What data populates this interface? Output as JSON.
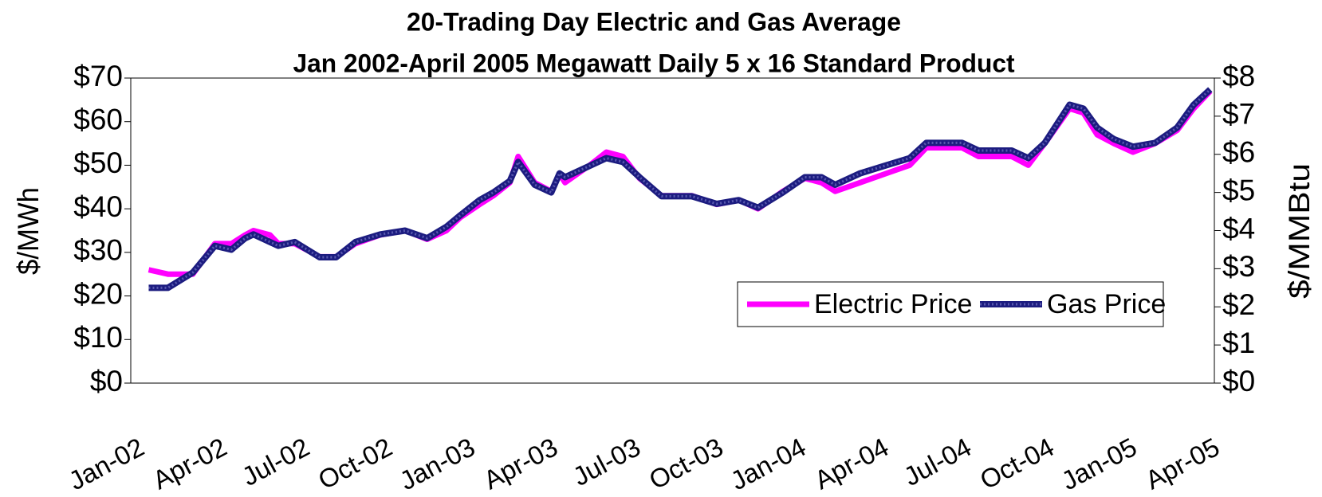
{
  "chart_data": {
    "type": "line",
    "title": "20-Trading Day Electric and Gas Average",
    "subtitle": "Jan 2002-April 2005 Megawatt Daily 5 x 16 Standard Product",
    "y_label": "$/MWh",
    "y2_label": "$/MMBtu",
    "x": [
      0.5,
      1.2,
      2.1,
      2.9,
      3.5,
      4.0,
      4.3,
      4.9,
      5.2,
      5.8,
      6.7,
      7.3,
      8.0,
      8.9,
      9.8,
      10.6,
      11.3,
      11.8,
      12.5,
      13.0,
      13.6,
      13.9,
      14.5,
      15.1,
      15.4,
      15.6,
      16.5,
      17.1,
      17.7,
      18.3,
      19.1,
      20.2,
      21.1,
      21.9,
      22.6,
      23.5,
      24.3,
      24.9,
      25.4,
      26.3,
      27.2,
      28.1,
      28.7,
      30.0,
      30.6,
      31.8,
      32.4,
      33.0,
      33.9,
      34.4,
      34.9,
      35.5,
      36.2,
      37.0,
      37.8,
      38.4,
      39.0
    ],
    "series": [
      {
        "name": "Electric Price",
        "color": "#ff00ff",
        "axis": "y",
        "values": [
          26,
          25,
          25,
          32,
          32,
          34,
          35,
          34,
          32,
          32,
          29,
          29,
          32,
          34,
          35,
          33,
          35,
          38,
          41,
          43,
          46,
          52,
          46,
          44,
          48,
          46,
          50,
          53,
          52,
          47,
          43,
          43,
          41,
          42,
          40,
          44,
          47,
          46,
          44,
          46,
          48,
          50,
          54,
          54,
          52,
          52,
          50,
          55,
          63,
          62,
          57,
          55,
          53,
          55,
          58,
          63,
          67
        ]
      },
      {
        "name": "Gas Price",
        "color": "#1c1c80",
        "axis": "y2",
        "values": [
          2.5,
          2.5,
          2.9,
          3.6,
          3.5,
          3.8,
          3.9,
          3.7,
          3.6,
          3.7,
          3.3,
          3.3,
          3.7,
          3.9,
          4.0,
          3.8,
          4.1,
          4.4,
          4.8,
          5.0,
          5.3,
          5.8,
          5.2,
          5.0,
          5.5,
          5.4,
          5.7,
          5.9,
          5.8,
          5.4,
          4.9,
          4.9,
          4.7,
          4.8,
          4.6,
          5.0,
          5.4,
          5.4,
          5.2,
          5.5,
          5.7,
          5.9,
          6.3,
          6.3,
          6.1,
          6.1,
          5.9,
          6.3,
          7.3,
          7.2,
          6.7,
          6.4,
          6.2,
          6.3,
          6.7,
          7.3,
          7.7
        ]
      }
    ],
    "xlim": [
      -0.15,
      39.15
    ],
    "xticks": [
      {
        "value": 0,
        "label": "Jan-02"
      },
      {
        "value": 3,
        "label": "Apr-02"
      },
      {
        "value": 6,
        "label": "Jul-02"
      },
      {
        "value": 9,
        "label": "Oct-02"
      },
      {
        "value": 12,
        "label": "Jan-03"
      },
      {
        "value": 15,
        "label": "Apr-03"
      },
      {
        "value": 18,
        "label": "Jul-03"
      },
      {
        "value": 21,
        "label": "Oct-03"
      },
      {
        "value": 24,
        "label": "Jan-04"
      },
      {
        "value": 27,
        "label": "Apr-04"
      },
      {
        "value": 30,
        "label": "Jul-04"
      },
      {
        "value": 33,
        "label": "Oct-04"
      },
      {
        "value": 36,
        "label": "Jan-05"
      },
      {
        "value": 39,
        "label": "Apr-05"
      }
    ],
    "ylim": [
      0,
      70
    ],
    "yticks": [
      {
        "value": 0,
        "label": "$0"
      },
      {
        "value": 10,
        "label": "$10"
      },
      {
        "value": 20,
        "label": "$20"
      },
      {
        "value": 30,
        "label": "$30"
      },
      {
        "value": 40,
        "label": "$40"
      },
      {
        "value": 50,
        "label": "$50"
      },
      {
        "value": 60,
        "label": "$60"
      },
      {
        "value": 70,
        "label": "$70"
      }
    ],
    "y2lim": [
      0,
      8
    ],
    "y2ticks": [
      {
        "value": 0,
        "label": "$0"
      },
      {
        "value": 1,
        "label": "$1"
      },
      {
        "value": 2,
        "label": "$2"
      },
      {
        "value": 3,
        "label": "$3"
      },
      {
        "value": 4,
        "label": "$4"
      },
      {
        "value": 5,
        "label": "$5"
      },
      {
        "value": 6,
        "label": "$6"
      },
      {
        "value": 7,
        "label": "$7"
      },
      {
        "value": 8,
        "label": "$8"
      }
    ],
    "legend": "lower right"
  }
}
